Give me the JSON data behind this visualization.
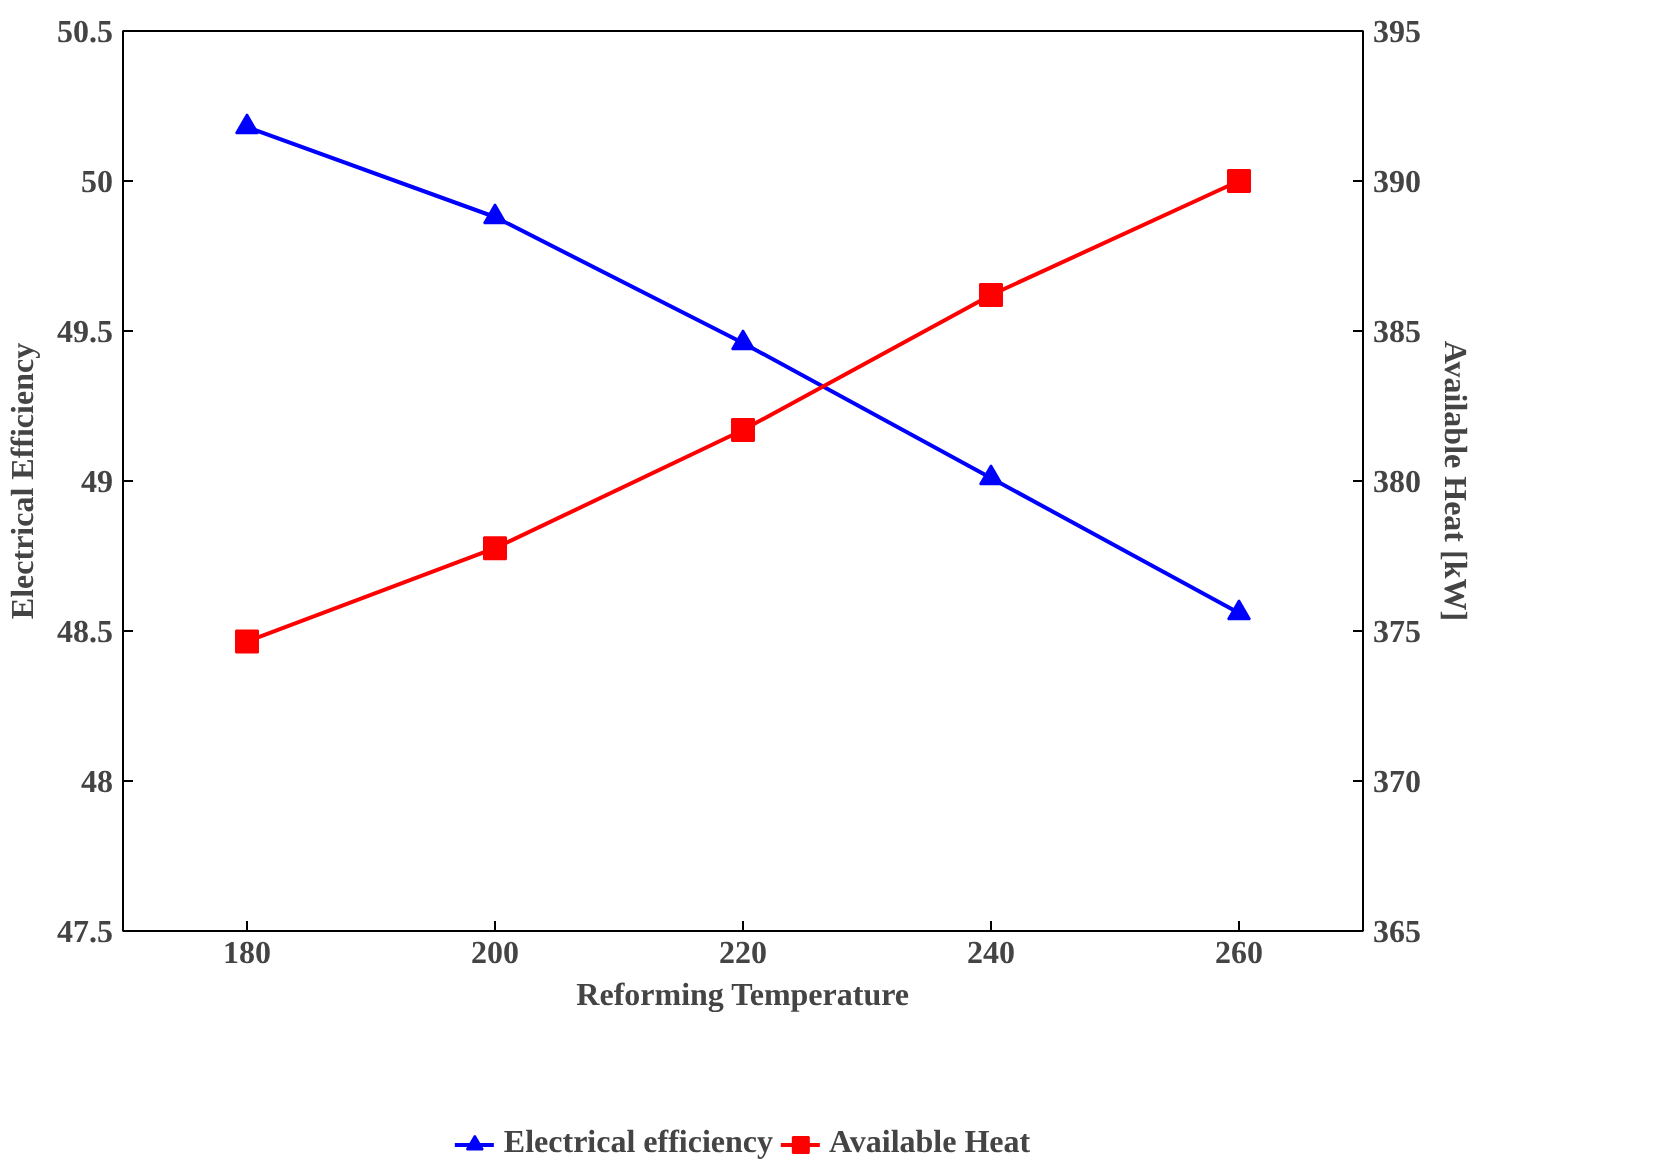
{
  "chart_data": {
    "type": "line",
    "xlabel": "Reforming Temperature",
    "ylabel": "Electrical Efficiency",
    "y2label": "Available Heat [kW]",
    "x": [
      180,
      200,
      220,
      240,
      260
    ],
    "series": [
      {
        "name": "Electrical efficiency",
        "color": "#0000ff",
        "marker": "triangle",
        "values": [
          50.18,
          49.88,
          49.46,
          49.01,
          48.56
        ]
      },
      {
        "name": "Available Heat",
        "color": "#ff0000",
        "marker": "square",
        "axis": "y2",
        "values": [
          374.65,
          377.76,
          381.7,
          386.2,
          390.0
        ]
      }
    ],
    "xlim": [
      170,
      270
    ],
    "xticks": [
      180,
      200,
      220,
      240,
      260
    ],
    "ylim": [
      47.5,
      50.5
    ],
    "yticks": [
      47.5,
      48,
      48.5,
      49,
      49.5,
      50,
      50.5
    ],
    "y2lim": [
      365,
      395
    ],
    "y2ticks": [
      365,
      370,
      375,
      380,
      385,
      390,
      395
    ],
    "grid": false,
    "legend": "bottom",
    "line_style": "solid"
  }
}
